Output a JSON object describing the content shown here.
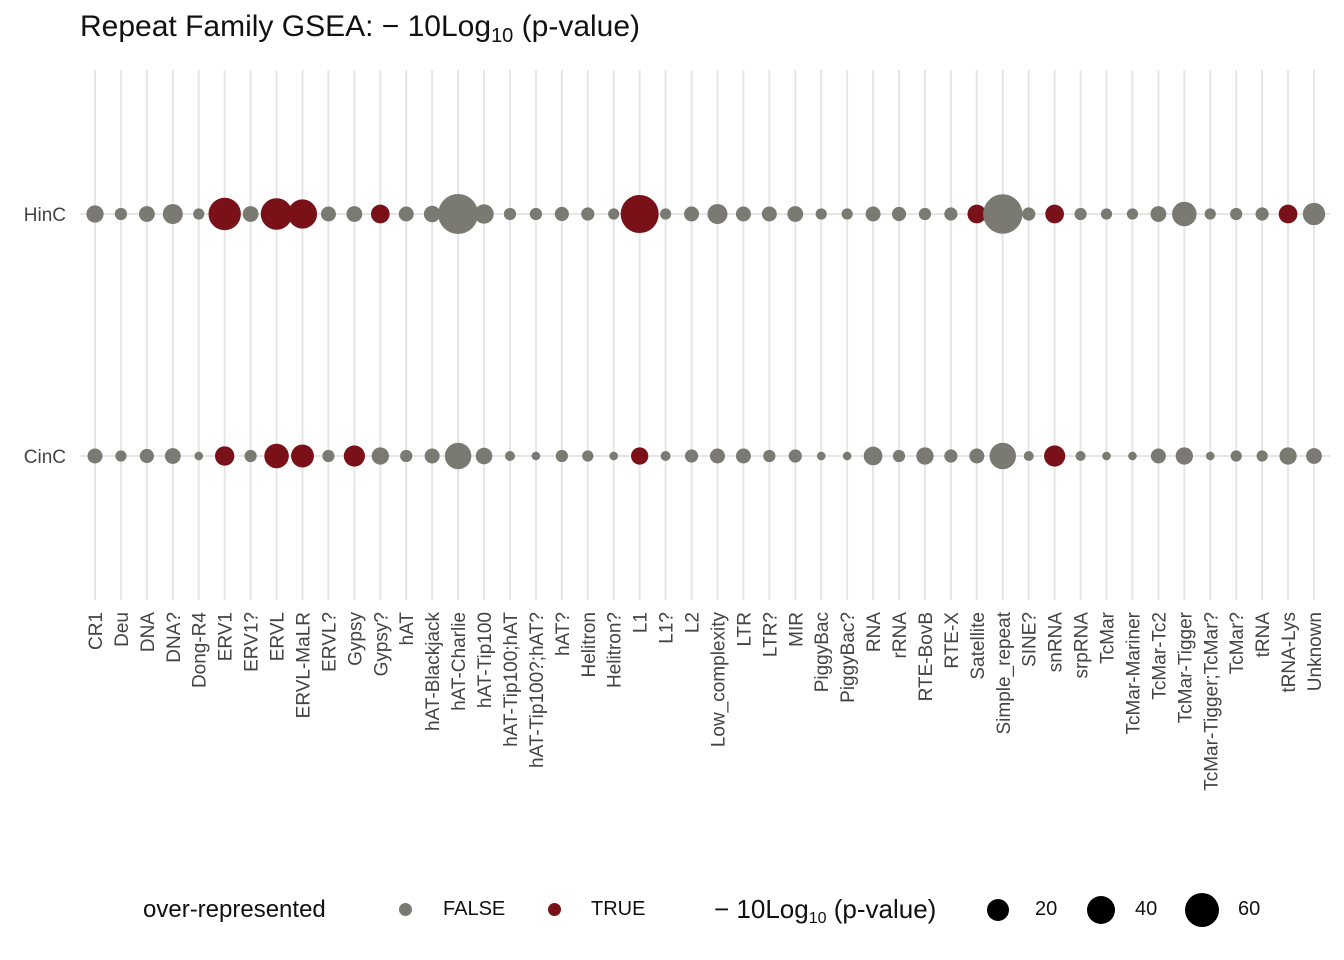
{
  "chart_data": {
    "type": "scatter",
    "title": {
      "prefix": "Repeat Family GSEA:  − 10Log",
      "subscript": "10",
      "suffix": " (p-value)"
    },
    "categories": [
      "CR1",
      "Deu",
      "DNA",
      "DNA?",
      "Dong-R4",
      "ERV1",
      "ERV1?",
      "ERVL",
      "ERVL-MaLR",
      "ERVL?",
      "Gypsy",
      "Gypsy?",
      "hAT",
      "hAT-Blackjack",
      "hAT-Charlie",
      "hAT-Tip100",
      "hAT-Tip100;hAT",
      "hAT-Tip100?;hAT?",
      "hAT?",
      "Helitron",
      "Helitron?",
      "L1",
      "L1?",
      "L2",
      "Low_complexity",
      "LTR",
      "LTR?",
      "MIR",
      "PiggyBac",
      "PiggyBac?",
      "RNA",
      "rRNA",
      "RTE-BovB",
      "RTE-X",
      "Satellite",
      "Simple_repeat",
      "SINE?",
      "snRNA",
      "srpRNA",
      "TcMar",
      "TcMar-Mariner",
      "TcMar-Tc2",
      "TcMar-Tigger",
      "TcMar-Tigger;TcMar?",
      "TcMar?",
      "tRNA",
      "tRNA-Lys",
      "Unknown"
    ],
    "rows": [
      "HinC",
      "CinC"
    ],
    "series": [
      {
        "name": "HinC",
        "values": [
          12,
          6,
          10,
          16,
          5,
          42,
          10,
          40,
          34,
          9,
          10,
          14,
          9,
          11,
          64,
          15,
          6,
          6,
          8,
          7,
          5,
          58,
          5,
          9,
          16,
          9,
          9,
          10,
          5,
          5,
          9,
          8,
          6,
          7,
          14,
          62,
          7,
          14,
          6,
          5,
          5,
          10,
          24,
          5,
          6,
          7,
          14,
          20
        ],
        "over_represented": [
          false,
          false,
          false,
          false,
          false,
          true,
          false,
          true,
          true,
          false,
          false,
          true,
          false,
          false,
          false,
          false,
          false,
          false,
          false,
          false,
          false,
          true,
          false,
          false,
          false,
          false,
          false,
          false,
          false,
          false,
          false,
          false,
          false,
          false,
          true,
          false,
          false,
          true,
          false,
          false,
          false,
          false,
          false,
          false,
          false,
          false,
          true,
          false
        ]
      },
      {
        "name": "CinC",
        "values": [
          9,
          5,
          8,
          10,
          3,
          15,
          6,
          24,
          21,
          6,
          18,
          12,
          6,
          9,
          28,
          11,
          4,
          3,
          6,
          5,
          3,
          12,
          4,
          7,
          9,
          9,
          6,
          7,
          3,
          3,
          14,
          6,
          12,
          7,
          9,
          28,
          4,
          18,
          4,
          3,
          3,
          9,
          12,
          3,
          5,
          5,
          12,
          10
        ],
        "over_represented": [
          false,
          false,
          false,
          false,
          false,
          true,
          false,
          true,
          true,
          false,
          true,
          false,
          false,
          false,
          false,
          false,
          false,
          false,
          false,
          false,
          false,
          true,
          false,
          false,
          false,
          false,
          false,
          false,
          false,
          false,
          false,
          false,
          false,
          false,
          false,
          false,
          false,
          true,
          false,
          false,
          false,
          false,
          false,
          false,
          false,
          false,
          false,
          false
        ]
      }
    ],
    "size_legend": {
      "title_prefix": "− 10Log",
      "title_subscript": "10",
      "title_suffix": " (p-value)",
      "breaks": [
        20,
        40,
        60
      ],
      "labels": [
        "20",
        "40",
        "60"
      ]
    },
    "color_legend": {
      "title": "over-represented",
      "labels": [
        "FALSE",
        "TRUE"
      ]
    },
    "colors": {
      "false": "#7a7a72",
      "true": "#7a1018",
      "grid": "#e6e6e6"
    },
    "legend_position": "bottom",
    "grid": true
  }
}
